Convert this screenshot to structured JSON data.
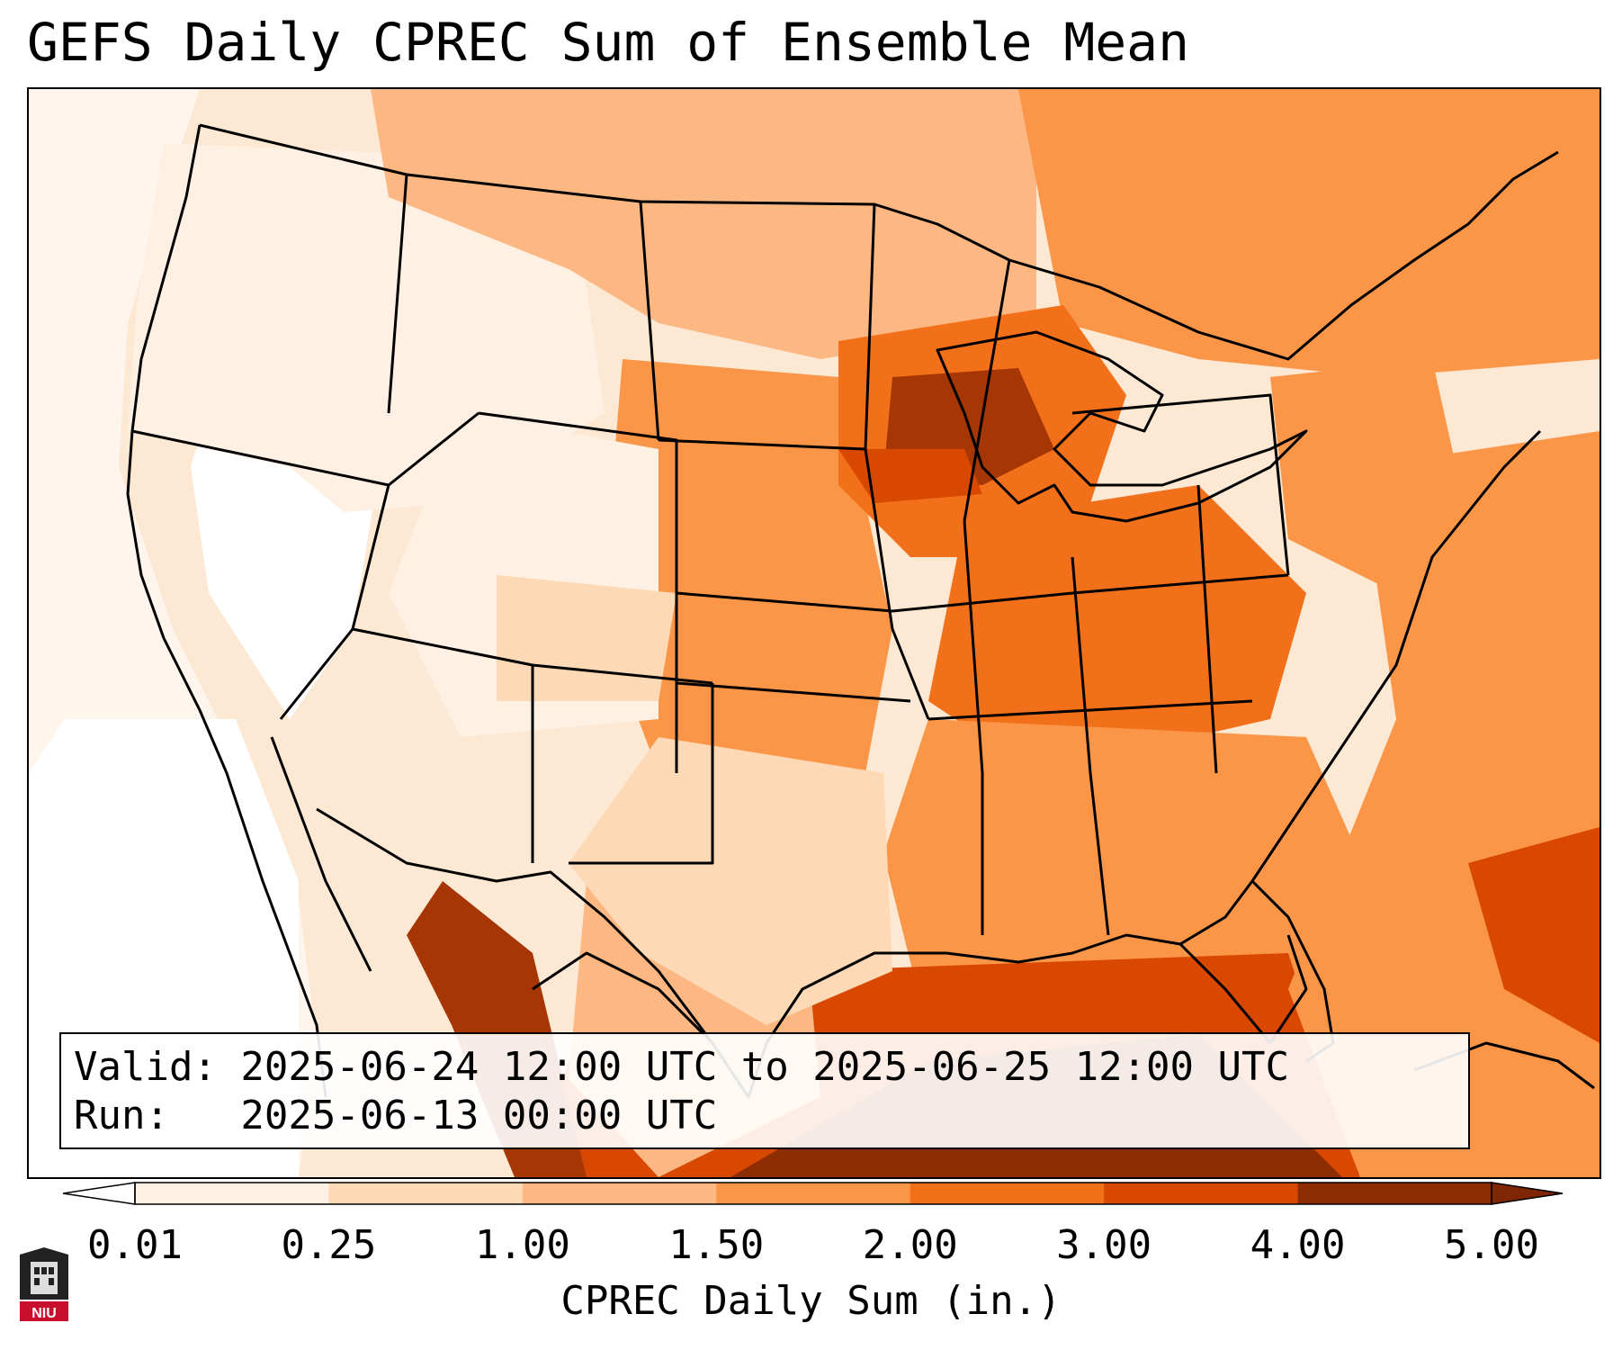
{
  "title": "GEFS Daily CPREC Sum of Ensemble Mean",
  "info": {
    "valid_line": "Valid: 2025-06-24 12:00 UTC to 2025-06-25 12:00 UTC",
    "run_line": "Run:   2025-06-13 00:00 UTC"
  },
  "colorbar": {
    "label": "CPREC Daily Sum (in.)",
    "ticks": [
      "0.01",
      "0.25",
      "1.00",
      "1.50",
      "2.00",
      "3.00",
      "4.00",
      "5.00"
    ],
    "colors": [
      "#ffffff",
      "#fef0e3",
      "#fdd9b5",
      "#fdb782",
      "#fb9648",
      "#f3701b",
      "#d94801",
      "#8c2d04"
    ],
    "under_color": "#ffffff",
    "over_color": "#7f2704"
  },
  "logo_text": "NIU",
  "colors": {
    "border": "#000000",
    "dark_max": "#8c2d04"
  }
}
